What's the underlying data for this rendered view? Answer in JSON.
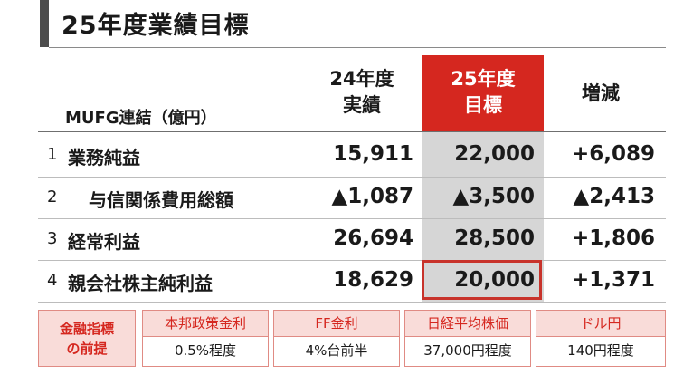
{
  "title": "25年度業績目標",
  "header": {
    "unit": "MUFG連結（億円）",
    "col_24_line1": "24年度",
    "col_24_line2": "実績",
    "col_25_line1": "25年度",
    "col_25_line2": "目標",
    "col_diff": "増減"
  },
  "rows": [
    {
      "num": "1",
      "label": "業務純益",
      "v24": "15,911",
      "v25": "22,000",
      "diff": "+6,089"
    },
    {
      "num": "2",
      "label": "与信関係費用総額",
      "v24": "▲1,087",
      "v25": "▲3,500",
      "diff": "▲2,413"
    },
    {
      "num": "3",
      "label": "経常利益",
      "v24": "26,694",
      "v25": "28,500",
      "diff": "+1,806"
    },
    {
      "num": "4",
      "label": "親会社株主純利益",
      "v24": "18,629",
      "v25": "20,000",
      "diff": "+1,371"
    }
  ],
  "assumptions": {
    "label_line1": "金融指標",
    "label_line2": "の前提",
    "items": [
      {
        "head": "本邦政策金利",
        "value": "0.5%程度"
      },
      {
        "head": "FF金利",
        "value": "4%台前半"
      },
      {
        "head": "日経平均株価",
        "value": "37,000円程度"
      },
      {
        "head": "ドル円",
        "value": "140円程度"
      }
    ]
  }
}
